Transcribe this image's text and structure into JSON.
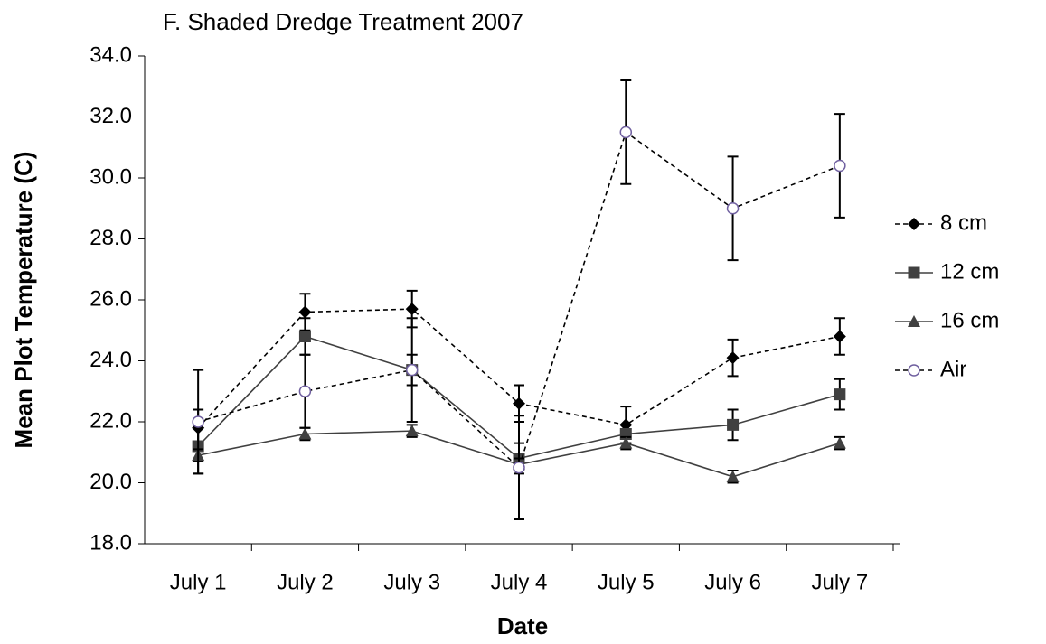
{
  "chart_data": {
    "type": "line",
    "title": "F.  Shaded Dredge Treatment 2007",
    "x_label": "Date",
    "y_label": "Mean Plot Temperature (C)",
    "categories": [
      "July 1",
      "July 2",
      "July 3",
      "July 4",
      "July 5",
      "July 6",
      "July 7"
    ],
    "series": [
      {
        "name": "8 cm",
        "color": "#000000",
        "dash": true,
        "marker": "diamond",
        "values": [
          21.8,
          25.6,
          25.7,
          22.6,
          21.9,
          24.1,
          24.8
        ],
        "errors": [
          0.6,
          0.6,
          0.6,
          0.6,
          0.6,
          0.6,
          0.6
        ]
      },
      {
        "name": "12 cm",
        "color": "#404040",
        "dash": false,
        "marker": "square",
        "values": [
          21.2,
          24.8,
          23.7,
          20.8,
          21.6,
          21.9,
          22.9
        ],
        "errors": [
          0.9,
          0.6,
          0.5,
          0.5,
          0.3,
          0.5,
          0.5
        ]
      },
      {
        "name": "16 cm",
        "color": "#404040",
        "dash": false,
        "marker": "triangle",
        "values": [
          20.9,
          21.6,
          21.7,
          20.6,
          21.3,
          20.2,
          21.3
        ],
        "errors": [
          0.2,
          0.2,
          0.2,
          0.2,
          0.2,
          0.2,
          0.2
        ]
      },
      {
        "name": "Air",
        "color": "#000000",
        "dash": true,
        "marker": "circle",
        "marker_color": "#7060a0",
        "values": [
          22.0,
          23.0,
          23.7,
          20.5,
          31.5,
          29.0,
          30.4
        ],
        "errors": [
          1.7,
          1.2,
          1.7,
          1.7,
          1.7,
          1.7,
          1.7
        ]
      }
    ],
    "ylim": [
      18,
      34
    ],
    "yticks": [
      {
        "value": 18,
        "label": "18.0"
      },
      {
        "value": 20,
        "label": "20.0"
      },
      {
        "value": 22,
        "label": "22.0"
      },
      {
        "value": 24,
        "label": "24.0"
      },
      {
        "value": 26,
        "label": "26.0"
      },
      {
        "value": 28,
        "label": "28.0"
      },
      {
        "value": 30,
        "label": "30.0"
      },
      {
        "value": 32,
        "label": "32.0"
      },
      {
        "value": 34,
        "label": "34.0"
      }
    ],
    "grid": false,
    "legend": "right"
  }
}
